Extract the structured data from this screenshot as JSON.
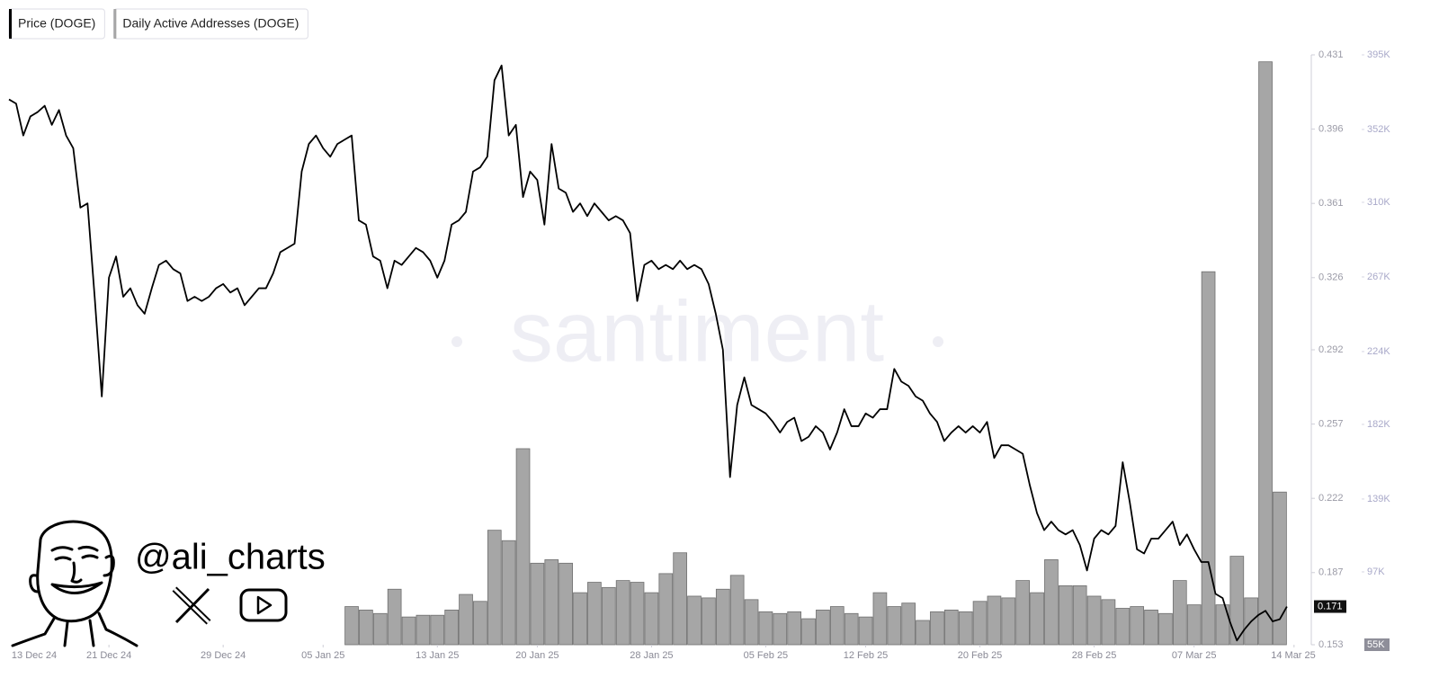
{
  "chart_data": {
    "type": "line",
    "watermark": "santiment",
    "handle": "@ali_charts",
    "xlim": [
      "2024-12-14T00:00",
      "2025-03-15T05:00"
    ],
    "xticks": [
      {
        "value": "2024-12-13",
        "label": "13 Dec 24"
      },
      {
        "value": "2024-12-21",
        "label": "21 Dec 24"
      },
      {
        "value": "2024-12-29",
        "label": "29 Dec 24"
      },
      {
        "value": "2025-01-05",
        "label": "05 Jan 25"
      },
      {
        "value": "2025-01-13",
        "label": "13 Jan 25"
      },
      {
        "value": "2025-01-20",
        "label": "20 Jan 25"
      },
      {
        "value": "2025-01-28",
        "label": "28 Jan 25"
      },
      {
        "value": "2025-02-05",
        "label": "05 Feb 25"
      },
      {
        "value": "2025-02-12",
        "label": "12 Feb 25"
      },
      {
        "value": "2025-02-20",
        "label": "20 Feb 25"
      },
      {
        "value": "2025-02-28",
        "label": "28 Feb 25"
      },
      {
        "value": "2025-03-07",
        "label": "07 Mar 25"
      },
      {
        "value": "2025-03-14",
        "label": "14 Mar 25"
      }
    ],
    "ylim": [
      0.153,
      0.431
    ],
    "yticks": [
      0.153,
      0.187,
      0.222,
      0.257,
      0.292,
      0.326,
      0.361,
      0.396,
      0.431
    ],
    "y2lim": [
      55000,
      395000
    ],
    "y2ticks": [
      {
        "value": 55000,
        "label": "55K"
      },
      {
        "value": 97000,
        "label": "97K"
      },
      {
        "value": 139000,
        "label": "139K"
      },
      {
        "value": 182000,
        "label": "182K"
      },
      {
        "value": 224000,
        "label": "224K"
      },
      {
        "value": 267000,
        "label": "267K"
      },
      {
        "value": 310000,
        "label": "310K"
      },
      {
        "value": 352000,
        "label": "352K"
      },
      {
        "value": 395000,
        "label": "395K"
      }
    ],
    "series": [
      {
        "name": "Price (DOGE)",
        "type": "line",
        "color": "#000000",
        "x": [
          "2024-12-14T00:00",
          "2024-12-14T12:00",
          "2024-12-15T00:00",
          "2024-12-15T12:00",
          "2024-12-16T00:00",
          "2024-12-16T12:00",
          "2024-12-17T00:00",
          "2024-12-17T12:00",
          "2024-12-18T00:00",
          "2024-12-18T12:00",
          "2024-12-19T00:00",
          "2024-12-19T12:00",
          "2024-12-20T00:00",
          "2024-12-20T12:00",
          "2024-12-21T00:00",
          "2024-12-21T12:00",
          "2024-12-22T00:00",
          "2024-12-22T12:00",
          "2024-12-23T00:00",
          "2024-12-23T12:00",
          "2024-12-24T00:00",
          "2024-12-24T12:00",
          "2024-12-25T00:00",
          "2024-12-25T12:00",
          "2024-12-26T00:00",
          "2024-12-26T12:00",
          "2024-12-27T00:00",
          "2024-12-27T12:00",
          "2024-12-28T00:00",
          "2024-12-28T12:00",
          "2024-12-29T00:00",
          "2024-12-29T12:00",
          "2024-12-30T00:00",
          "2024-12-30T12:00",
          "2024-12-31T00:00",
          "2024-12-31T12:00",
          "2025-01-01T00:00",
          "2025-01-01T12:00",
          "2025-01-02T00:00",
          "2025-01-02T12:00",
          "2025-01-03T00:00",
          "2025-01-03T12:00",
          "2025-01-04T00:00",
          "2025-01-04T12:00",
          "2025-01-05T00:00",
          "2025-01-05T12:00",
          "2025-01-06T00:00",
          "2025-01-06T12:00",
          "2025-01-07T00:00",
          "2025-01-07T12:00",
          "2025-01-08T00:00",
          "2025-01-08T12:00",
          "2025-01-09T00:00",
          "2025-01-09T12:00",
          "2025-01-10T00:00",
          "2025-01-10T12:00",
          "2025-01-11T00:00",
          "2025-01-11T12:00",
          "2025-01-12T00:00",
          "2025-01-12T12:00",
          "2025-01-13T00:00",
          "2025-01-13T12:00",
          "2025-01-14T00:00",
          "2025-01-14T12:00",
          "2025-01-15T00:00",
          "2025-01-15T12:00",
          "2025-01-16T00:00",
          "2025-01-16T12:00",
          "2025-01-17T00:00",
          "2025-01-17T12:00",
          "2025-01-18T00:00",
          "2025-01-18T12:00",
          "2025-01-19T00:00",
          "2025-01-19T12:00",
          "2025-01-20T00:00",
          "2025-01-20T12:00",
          "2025-01-21T00:00",
          "2025-01-21T12:00",
          "2025-01-22T00:00",
          "2025-01-22T12:00",
          "2025-01-23T00:00",
          "2025-01-23T12:00",
          "2025-01-24T00:00",
          "2025-01-24T12:00",
          "2025-01-25T00:00",
          "2025-01-25T12:00",
          "2025-01-26T00:00",
          "2025-01-26T12:00",
          "2025-01-27T00:00",
          "2025-01-27T12:00",
          "2025-01-28T00:00",
          "2025-01-28T12:00",
          "2025-01-29T00:00",
          "2025-01-29T12:00",
          "2025-01-30T00:00",
          "2025-01-30T12:00",
          "2025-01-31T00:00",
          "2025-01-31T12:00",
          "2025-02-01T00:00",
          "2025-02-01T12:00",
          "2025-02-02T00:00",
          "2025-02-02T12:00",
          "2025-02-03T00:00",
          "2025-02-03T12:00",
          "2025-02-04T00:00",
          "2025-02-04T12:00",
          "2025-02-05T00:00",
          "2025-02-05T12:00",
          "2025-02-06T00:00",
          "2025-02-06T12:00",
          "2025-02-07T00:00",
          "2025-02-07T12:00",
          "2025-02-08T00:00",
          "2025-02-08T12:00",
          "2025-02-09T00:00",
          "2025-02-09T12:00",
          "2025-02-10T00:00",
          "2025-02-10T12:00",
          "2025-02-11T00:00",
          "2025-02-11T12:00",
          "2025-02-12T00:00",
          "2025-02-12T12:00",
          "2025-02-13T00:00",
          "2025-02-13T12:00",
          "2025-02-14T00:00",
          "2025-02-14T12:00",
          "2025-02-15T00:00",
          "2025-02-15T12:00",
          "2025-02-16T00:00",
          "2025-02-16T12:00",
          "2025-02-17T00:00",
          "2025-02-17T12:00",
          "2025-02-18T00:00",
          "2025-02-18T12:00",
          "2025-02-19T00:00",
          "2025-02-19T12:00",
          "2025-02-20T00:00",
          "2025-02-20T12:00",
          "2025-02-21T00:00",
          "2025-02-21T12:00",
          "2025-02-22T00:00",
          "2025-02-22T12:00",
          "2025-02-23T00:00",
          "2025-02-23T12:00",
          "2025-02-24T00:00",
          "2025-02-24T12:00",
          "2025-02-25T00:00",
          "2025-02-25T12:00",
          "2025-02-26T00:00",
          "2025-02-26T12:00",
          "2025-02-27T00:00",
          "2025-02-27T12:00",
          "2025-02-28T00:00",
          "2025-02-28T12:00",
          "2025-03-01T00:00",
          "2025-03-01T12:00",
          "2025-03-02T00:00",
          "2025-03-02T12:00",
          "2025-03-03T00:00",
          "2025-03-03T12:00",
          "2025-03-04T00:00",
          "2025-03-04T12:00",
          "2025-03-05T00:00",
          "2025-03-05T12:00",
          "2025-03-06T00:00",
          "2025-03-06T12:00",
          "2025-03-07T00:00",
          "2025-03-07T12:00",
          "2025-03-08T00:00",
          "2025-03-08T12:00",
          "2025-03-09T00:00",
          "2025-03-09T12:00",
          "2025-03-10T00:00",
          "2025-03-10T12:00",
          "2025-03-11T00:00",
          "2025-03-11T12:00",
          "2025-03-12T00:00",
          "2025-03-12T12:00",
          "2025-03-13T00:00",
          "2025-03-13T12:00"
        ],
        "values": [
          0.41,
          0.408,
          0.393,
          0.402,
          0.404,
          0.407,
          0.398,
          0.405,
          0.393,
          0.387,
          0.359,
          0.361,
          0.317,
          0.27,
          0.326,
          0.336,
          0.317,
          0.321,
          0.313,
          0.309,
          0.321,
          0.332,
          0.334,
          0.33,
          0.328,
          0.315,
          0.317,
          0.315,
          0.317,
          0.321,
          0.323,
          0.319,
          0.321,
          0.313,
          0.317,
          0.321,
          0.321,
          0.328,
          0.338,
          0.34,
          0.342,
          0.376,
          0.389,
          0.393,
          0.387,
          0.383,
          0.389,
          0.391,
          0.393,
          0.353,
          0.351,
          0.336,
          0.334,
          0.321,
          0.334,
          0.332,
          0.336,
          0.34,
          0.338,
          0.334,
          0.326,
          0.334,
          0.351,
          0.353,
          0.357,
          0.376,
          0.378,
          0.383,
          0.419,
          0.426,
          0.393,
          0.398,
          0.364,
          0.376,
          0.372,
          0.351,
          0.389,
          0.368,
          0.366,
          0.357,
          0.361,
          0.355,
          0.361,
          0.357,
          0.353,
          0.355,
          0.353,
          0.347,
          0.315,
          0.332,
          0.334,
          0.33,
          0.332,
          0.33,
          0.334,
          0.33,
          0.332,
          0.33,
          0.323,
          0.309,
          0.292,
          0.232,
          0.266,
          0.279,
          0.266,
          0.264,
          0.262,
          0.258,
          0.253,
          0.258,
          0.26,
          0.249,
          0.251,
          0.256,
          0.253,
          0.245,
          0.253,
          0.264,
          0.256,
          0.256,
          0.262,
          0.26,
          0.264,
          0.264,
          0.283,
          0.277,
          0.275,
          0.27,
          0.268,
          0.262,
          0.258,
          0.249,
          0.253,
          0.256,
          0.253,
          0.256,
          0.253,
          0.258,
          0.241,
          0.247,
          0.247,
          0.245,
          0.243,
          0.228,
          0.215,
          0.207,
          0.211,
          0.207,
          0.205,
          0.207,
          0.2,
          0.188,
          0.203,
          0.207,
          0.205,
          0.209,
          0.239,
          0.22,
          0.198,
          0.196,
          0.203,
          0.203,
          0.207,
          0.211,
          0.2,
          0.205,
          0.198,
          0.192,
          0.192,
          0.177,
          0.175,
          0.164,
          0.155,
          0.16,
          0.164,
          0.167,
          0.169,
          0.164,
          0.165,
          0.171
        ]
      },
      {
        "name": "Daily Active Addresses (DOGE)",
        "type": "bar",
        "axis": "y2",
        "color": "#a6a6a6",
        "x": [
          "2025-01-07",
          "2025-01-08",
          "2025-01-09",
          "2025-01-10",
          "2025-01-11",
          "2025-01-12",
          "2025-01-13",
          "2025-01-14",
          "2025-01-15",
          "2025-01-16",
          "2025-01-17",
          "2025-01-18",
          "2025-01-19",
          "2025-01-20",
          "2025-01-21",
          "2025-01-22",
          "2025-01-23",
          "2025-01-24",
          "2025-01-25",
          "2025-01-26",
          "2025-01-27",
          "2025-01-28",
          "2025-01-29",
          "2025-01-30",
          "2025-01-31",
          "2025-02-01",
          "2025-02-02",
          "2025-02-03",
          "2025-02-04",
          "2025-02-05",
          "2025-02-06",
          "2025-02-07",
          "2025-02-08",
          "2025-02-09",
          "2025-02-10",
          "2025-02-11",
          "2025-02-12",
          "2025-02-13",
          "2025-02-14",
          "2025-02-15",
          "2025-02-16",
          "2025-02-17",
          "2025-02-18",
          "2025-02-19",
          "2025-02-20",
          "2025-02-21",
          "2025-02-22",
          "2025-02-23",
          "2025-02-24",
          "2025-02-25",
          "2025-02-26",
          "2025-02-27",
          "2025-02-28",
          "2025-03-01",
          "2025-03-02",
          "2025-03-03",
          "2025-03-04",
          "2025-03-05",
          "2025-03-06",
          "2025-03-07",
          "2025-03-08",
          "2025-03-09",
          "2025-03-10",
          "2025-03-11",
          "2025-03-12",
          "2025-03-13"
        ],
        "values": [
          77000,
          75000,
          73000,
          87000,
          71000,
          72000,
          72000,
          75000,
          84000,
          80000,
          121000,
          115000,
          168000,
          102000,
          104000,
          102000,
          85000,
          91000,
          88000,
          92000,
          91000,
          85000,
          96000,
          108000,
          83000,
          82000,
          87000,
          95000,
          81000,
          74000,
          73000,
          74000,
          70000,
          75000,
          77000,
          73000,
          71000,
          85000,
          77000,
          79000,
          69000,
          74000,
          75000,
          74000,
          80000,
          83000,
          82000,
          92000,
          85000,
          104000,
          89000,
          89000,
          83000,
          81000,
          76000,
          77000,
          75000,
          73000,
          92000,
          78000,
          270000,
          78000,
          106000,
          82000,
          391000,
          143000
        ]
      }
    ]
  }
}
